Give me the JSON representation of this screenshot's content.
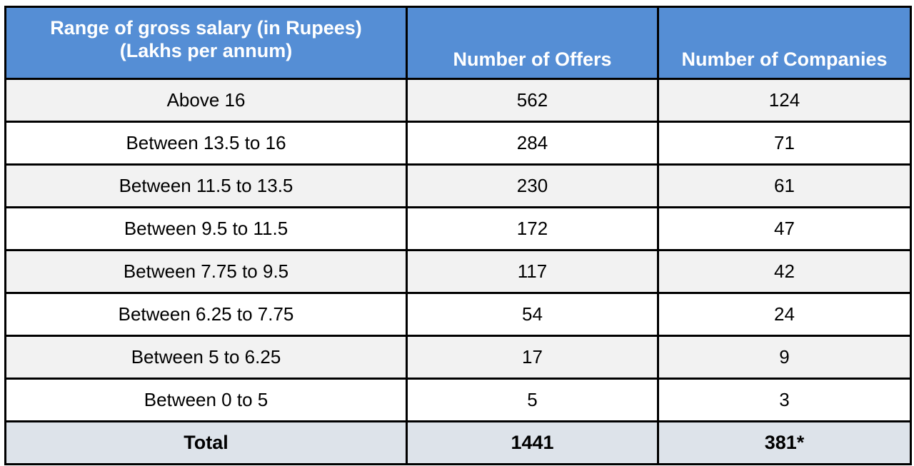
{
  "table": {
    "headers": {
      "range_line1": "Range of gross salary (in Rupees)",
      "range_line2": "(Lakhs per annum)",
      "offers": "Number of Offers",
      "companies": "Number of Companies"
    },
    "rows": [
      {
        "range": "Above 16",
        "offers": "562",
        "companies": "124"
      },
      {
        "range": "Between 13.5 to 16",
        "offers": "284",
        "companies": "71"
      },
      {
        "range": "Between 11.5 to 13.5",
        "offers": "230",
        "companies": "61"
      },
      {
        "range": "Between 9.5 to 11.5",
        "offers": "172",
        "companies": "47"
      },
      {
        "range": "Between 7.75 to 9.5",
        "offers": "117",
        "companies": "42"
      },
      {
        "range": "Between 6.25 to 7.75",
        "offers": "54",
        "companies": "24"
      },
      {
        "range": "Between 5 to 6.25",
        "offers": "17",
        "companies": "9"
      },
      {
        "range": "Between 0 to 5",
        "offers": "5",
        "companies": "3"
      }
    ],
    "total": {
      "label": "Total",
      "offers": "1441",
      "companies": "381*"
    }
  },
  "colors": {
    "header_bg": "#558ed5",
    "header_text": "#ffffff",
    "row_alt_bg": "#f2f2f2",
    "total_bg": "#dde3ea",
    "border": "#000000"
  }
}
